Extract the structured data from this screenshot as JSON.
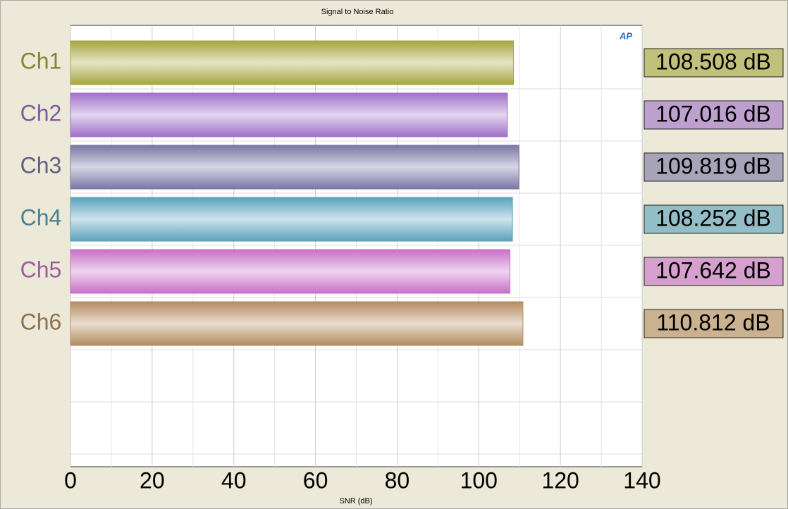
{
  "chart_data": {
    "type": "bar",
    "orientation": "horizontal",
    "title": "Signal to Noise Ratio",
    "x_label": "SNR (dB)",
    "logo": "AP",
    "categories": [
      "Ch1",
      "Ch2",
      "Ch3",
      "Ch4",
      "Ch5",
      "Ch6"
    ],
    "values": [
      108.508,
      107.016,
      109.819,
      108.252,
      107.642,
      110.812
    ],
    "value_labels": [
      "108.508 dB",
      "107.016 dB",
      "109.819 dB",
      "108.252 dB",
      "107.642 dB",
      "110.812 dB"
    ],
    "colors": [
      "#a6a640",
      "#a070c8",
      "#7a76a6",
      "#5aa2bc",
      "#c870c8",
      "#b48c60"
    ],
    "xlim": [
      0,
      140
    ],
    "xticks": [
      0,
      20,
      40,
      60,
      80,
      100,
      120,
      140
    ],
    "minor_xticks": [
      10,
      30,
      50,
      70,
      90,
      110,
      130
    ],
    "grid": true
  }
}
